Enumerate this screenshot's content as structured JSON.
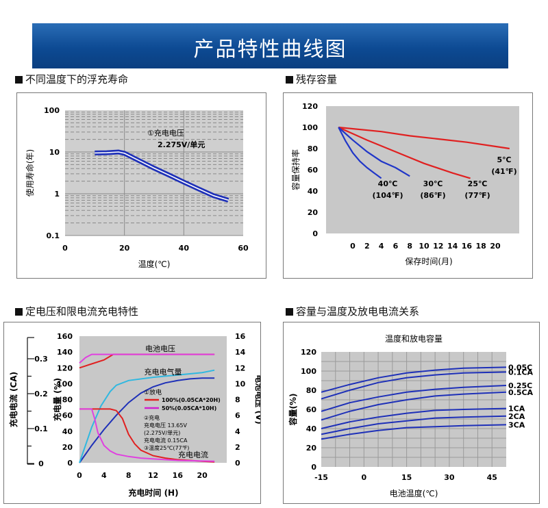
{
  "page": {
    "title": "产品特性曲线图"
  },
  "sections": [
    {
      "label": "不同温度下的浮充寿命"
    },
    {
      "label": "残存容量"
    },
    {
      "label": "定电压和限电流充电特性"
    },
    {
      "label": "容量与温度及放电电流关系"
    }
  ],
  "chart_data": [
    {
      "type": "line",
      "title": "",
      "xlabel": "温度(℃)",
      "ylabel": "使用寿命(年)",
      "x_ticks": [
        "0",
        "20",
        "40",
        "60"
      ],
      "y_ticks": [
        "0.1",
        "1",
        "10",
        "100"
      ],
      "xlim": [
        0,
        60
      ],
      "ylim": [
        0.1,
        100
      ],
      "y_scale": "log",
      "grid": true,
      "annotation": [
        "①充电电压",
        "2.275V/单元"
      ],
      "series": [
        {
          "x": [
            10,
            14,
            18,
            20,
            25,
            30,
            35,
            40,
            45,
            50,
            55
          ],
          "y": [
            9.5,
            9.6,
            10,
            9.3,
            6.2,
            4.1,
            2.8,
            1.9,
            1.3,
            0.9,
            0.7
          ]
        }
      ]
    },
    {
      "type": "line",
      "title": "",
      "xlabel": "保存时间(月)",
      "ylabel": "容量保持率",
      "x_ticks": [
        "0",
        "2",
        "4",
        "6",
        "8",
        "10",
        "12",
        "14",
        "16",
        "18",
        "20"
      ],
      "y_ticks": [
        "0",
        "20",
        "40",
        "60",
        "80",
        "100",
        "120"
      ],
      "ylim": [
        0,
        120
      ],
      "grid": false,
      "series": [
        {
          "name": "5℃ (41℉)",
          "color": "#e02020",
          "x": [
            -2,
            4,
            8,
            12,
            16,
            20,
            22
          ],
          "y": [
            100,
            96,
            92,
            89,
            86,
            82,
            80
          ]
        },
        {
          "name": "25℃ (77℉)",
          "color": "#e02020",
          "x": [
            -2,
            2,
            6,
            10,
            14,
            16.5
          ],
          "y": [
            100,
            88,
            77,
            66,
            57,
            52
          ]
        },
        {
          "name": "30℃ (86℉)",
          "color": "#2036c8",
          "x": [
            -2,
            0,
            2,
            4,
            6,
            8
          ],
          "y": [
            100,
            88,
            77,
            68,
            62,
            54
          ]
        },
        {
          "name": "40℃ (104℉)",
          "color": "#2036c8",
          "x": [
            -2,
            -1,
            0,
            1,
            2,
            3,
            4
          ],
          "y": [
            100,
            87,
            76,
            68,
            62,
            57,
            52
          ]
        }
      ],
      "labels": [
        {
          "line1": "5℃",
          "line2": "(41℉)"
        },
        {
          "line1": "25℃",
          "line2": "(77℉)"
        },
        {
          "line1": "30℃",
          "line2": "(86℉)"
        },
        {
          "line1": "40℃",
          "line2": "(104℉)"
        }
      ]
    },
    {
      "type": "line",
      "title": "",
      "xlabel": "充电时间 (H)",
      "ylabel": "充电量 (%)",
      "y2label": "电池电压 (V)",
      "y3label": "充电电流 (CA)",
      "x_ticks": [
        "0",
        "4",
        "8",
        "12",
        "16",
        "20"
      ],
      "y_ticks": [
        "0",
        "20",
        "40",
        "60",
        "80",
        "100",
        "120",
        "140",
        "160"
      ],
      "y2_ticks": [
        "0",
        "2",
        "4",
        "6",
        "8",
        "10",
        "12",
        "14",
        "16"
      ],
      "y3_ticks": [
        "0",
        "0.1",
        "0.2",
        "0.3"
      ],
      "xlim": [
        0,
        24
      ],
      "ylim": [
        0,
        160
      ],
      "grid": false,
      "curve_labels": [
        "电池电压",
        "充电电气量",
        "充电电流"
      ],
      "legend_title": "①放电",
      "legend": [
        {
          "name": "100%(0.05CA*20H)",
          "color": "#e02020"
        },
        {
          "name": "50%(0.05CA*10H)",
          "color": "#d020d0"
        }
      ],
      "notes": [
        "②充电",
        "充电电压  13.65V",
        "(2.275V/单元)",
        "充电电流  0.15CA",
        "③温度25℃(77℉)"
      ],
      "series": [
        {
          "name": "电池电压 100%",
          "color": "#e02020",
          "x": [
            0,
            2,
            4,
            5.5,
            22
          ],
          "y": [
            120,
            125,
            130,
            137,
            137
          ]
        },
        {
          "name": "电池电压 50%",
          "color": "#e040e0",
          "x": [
            0,
            1,
            2,
            22
          ],
          "y": [
            126,
            133,
            137,
            137
          ]
        },
        {
          "name": "充电电气量 100%",
          "color": "#1e30b8",
          "x": [
            0,
            2,
            4,
            6,
            8,
            10,
            12,
            14,
            16,
            18,
            20,
            22
          ],
          "y": [
            0,
            22,
            42,
            60,
            76,
            88,
            96,
            101,
            104,
            106,
            107,
            107
          ]
        },
        {
          "name": "充电电气量 50%",
          "color": "#30b8e0",
          "x": [
            0,
            2,
            3.5,
            5,
            6,
            8,
            12,
            16,
            20,
            22
          ],
          "y": [
            0,
            45,
            72,
            90,
            98,
            104,
            108,
            111,
            114,
            117
          ]
        },
        {
          "name": "充电电流 100%",
          "color": "#e02020",
          "x": [
            0,
            5,
            6,
            7,
            8,
            9,
            10,
            12,
            14,
            16,
            18,
            20,
            22
          ],
          "y": [
            68,
            68,
            66,
            56,
            36,
            24,
            16,
            9,
            6,
            4,
            3,
            2,
            1
          ]
        },
        {
          "name": "充电电流 50%",
          "color": "#e040e0",
          "x": [
            0,
            2,
            2.5,
            3,
            4,
            5,
            6,
            8,
            10,
            12,
            16,
            22
          ],
          "y": [
            68,
            68,
            55,
            38,
            22,
            15,
            11,
            8,
            6,
            5,
            3,
            2
          ]
        }
      ]
    },
    {
      "type": "line",
      "title": "温度和放电容量",
      "xlabel": "电池温度(℃)",
      "ylabel": "容量(%)",
      "x_ticks": [
        "-15",
        "0",
        "15",
        "30",
        "45"
      ],
      "y_ticks": [
        "0",
        "20",
        "40",
        "60",
        "80",
        "100",
        "120"
      ],
      "xlim": [
        -15,
        50
      ],
      "ylim": [
        0,
        120
      ],
      "grid": true,
      "series": [
        {
          "name": "0.05C",
          "color": "#1e30b8",
          "x": [
            -15,
            -5,
            5,
            15,
            25,
            35,
            50
          ],
          "y": [
            78,
            86,
            93,
            98,
            101,
            103,
            104
          ]
        },
        {
          "name": "0.1CA",
          "color": "#1e30b8",
          "x": [
            -15,
            -5,
            5,
            15,
            25,
            35,
            50
          ],
          "y": [
            71,
            80,
            88,
            93,
            96,
            98,
            99
          ]
        },
        {
          "name": "0.25C",
          "color": "#1e30b8",
          "x": [
            -15,
            -5,
            5,
            15,
            25,
            35,
            50
          ],
          "y": [
            58,
            67,
            73,
            78,
            81,
            83,
            85
          ]
        },
        {
          "name": "0.5CA",
          "color": "#1e30b8",
          "x": [
            -15,
            -5,
            5,
            15,
            25,
            35,
            50
          ],
          "y": [
            49,
            58,
            65,
            70,
            74,
            76,
            78
          ]
        },
        {
          "name": "1CA",
          "color": "#1e30b8",
          "x": [
            -15,
            -5,
            5,
            15,
            25,
            35,
            50
          ],
          "y": [
            40,
            47,
            52,
            56,
            59,
            60,
            61
          ]
        },
        {
          "name": "2CA",
          "color": "#1e30b8",
          "x": [
            -15,
            -5,
            5,
            15,
            25,
            35,
            50
          ],
          "y": [
            34,
            40,
            45,
            48,
            51,
            52,
            53
          ]
        },
        {
          "name": "3CA",
          "color": "#1e30b8",
          "x": [
            -15,
            -5,
            5,
            15,
            25,
            35,
            50
          ],
          "y": [
            29,
            34,
            38,
            41,
            42,
            43,
            44
          ]
        }
      ]
    }
  ]
}
